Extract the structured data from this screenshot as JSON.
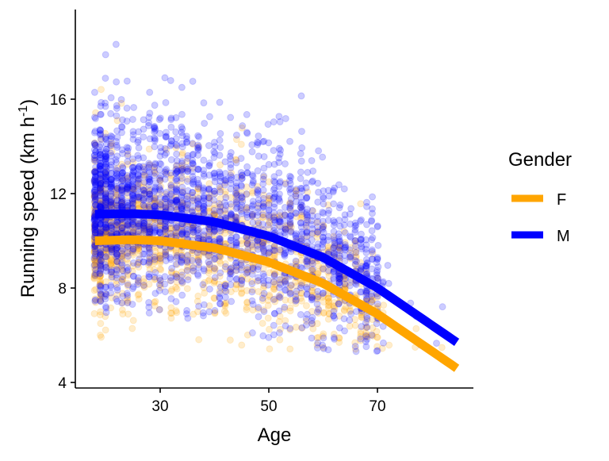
{
  "chart_data": {
    "type": "scatter",
    "title": "",
    "xlabel": "Age",
    "ylabel": "Running speed (km h",
    "ylabel_sup": "-1",
    "ylabel_close": ")",
    "xlim": [
      15.5,
      88
    ],
    "ylim": [
      3.8,
      19.8
    ],
    "xticks": [
      30,
      50,
      70
    ],
    "yticks": [
      4,
      8,
      12,
      16
    ],
    "grid": false,
    "legend": {
      "title": "Gender",
      "placement": "right",
      "entries": [
        "F",
        "M"
      ]
    },
    "colors": {
      "F": "#FFA500",
      "M": "#0000FF"
    },
    "point_alpha": 0.2,
    "series": [
      {
        "name": "F",
        "fit_age": [
          18,
          25,
          30,
          40,
          50,
          60,
          70,
          84.6
        ],
        "fit_speed": [
          10.0,
          10.05,
          10.0,
          9.7,
          9.1,
          8.2,
          6.9,
          4.6
        ],
        "scatter": {
          "n": 1400,
          "age_min": 18,
          "age_max": 84,
          "sd": 1.6,
          "speed_min": 5.4,
          "speed_max": 16.5
        }
      },
      {
        "name": "M",
        "fit_age": [
          18,
          25,
          30,
          40,
          50,
          60,
          70,
          84.6
        ],
        "fit_speed": [
          11.13,
          11.15,
          11.1,
          10.8,
          10.2,
          9.3,
          8.0,
          5.7
        ],
        "scatter": {
          "n": 2200,
          "age_min": 18,
          "age_max": 84,
          "sd": 1.9,
          "speed_min": 5.3,
          "speed_max": 19
        }
      }
    ]
  }
}
